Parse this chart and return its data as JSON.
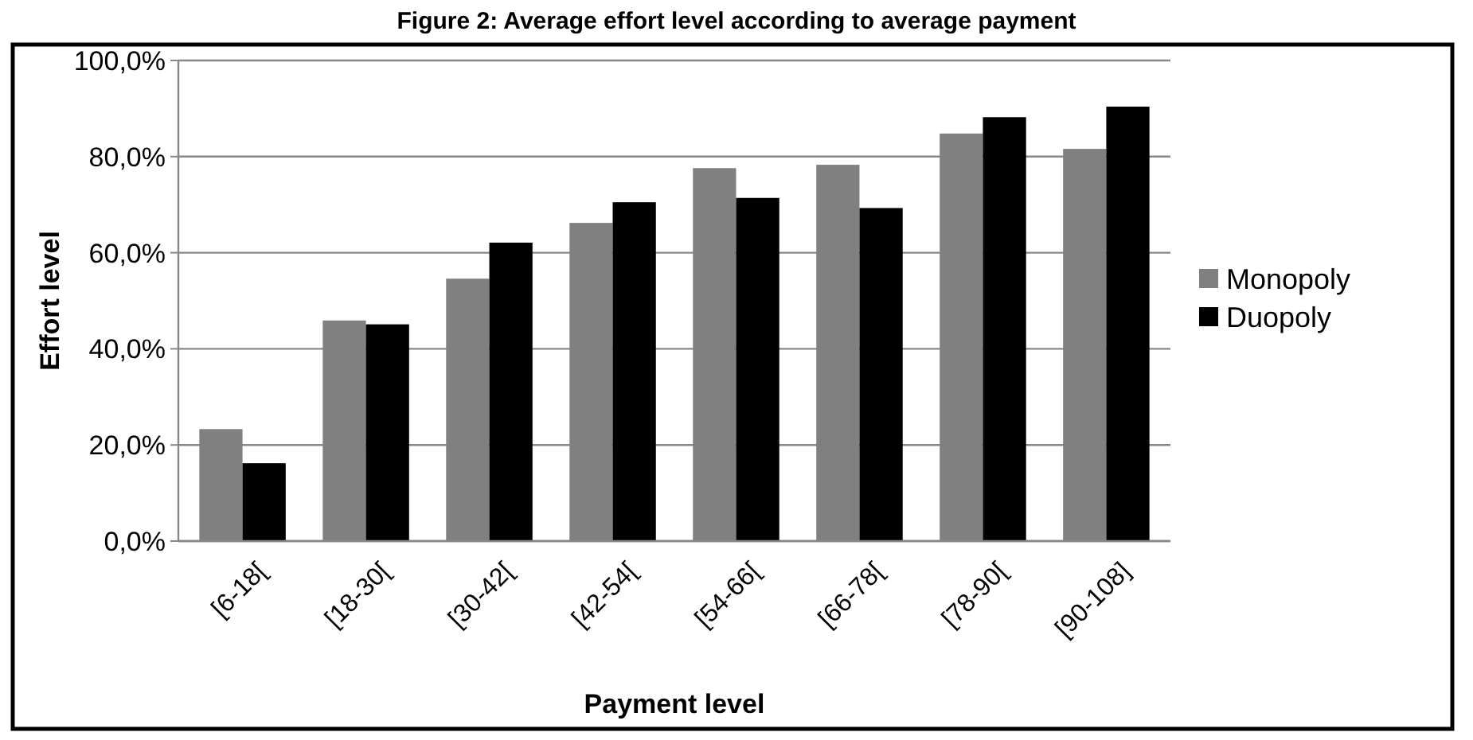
{
  "chart_data": {
    "type": "bar",
    "title": "Figure 2: Average effort level according to average payment",
    "xlabel": "Payment level",
    "ylabel": "Effort level",
    "categories": [
      "[6-18[",
      "[18-30[",
      "[30-42[",
      "[42-54[",
      "[54-66[",
      "[66-78[",
      "[78-90[",
      "[90-108]"
    ],
    "series": [
      {
        "name": "Monopoly",
        "color": "#808080",
        "values": [
          23.3,
          45.9,
          54.6,
          66.2,
          77.6,
          78.3,
          84.8,
          81.6
        ]
      },
      {
        "name": "Duopoly",
        "color": "#000000",
        "values": [
          16.2,
          45.1,
          62.1,
          70.5,
          71.4,
          69.3,
          88.2,
          90.4
        ]
      }
    ],
    "ylim": [
      0,
      100
    ],
    "yticks": [
      {
        "value": 0,
        "label": "0,0%"
      },
      {
        "value": 20,
        "label": "20,0%"
      },
      {
        "value": 40,
        "label": "40,0%"
      },
      {
        "value": 60,
        "label": "60,0%"
      },
      {
        "value": 80,
        "label": "80,0%"
      },
      {
        "value": 100,
        "label": "100,0%"
      }
    ],
    "grid": "y",
    "legend": "right"
  }
}
